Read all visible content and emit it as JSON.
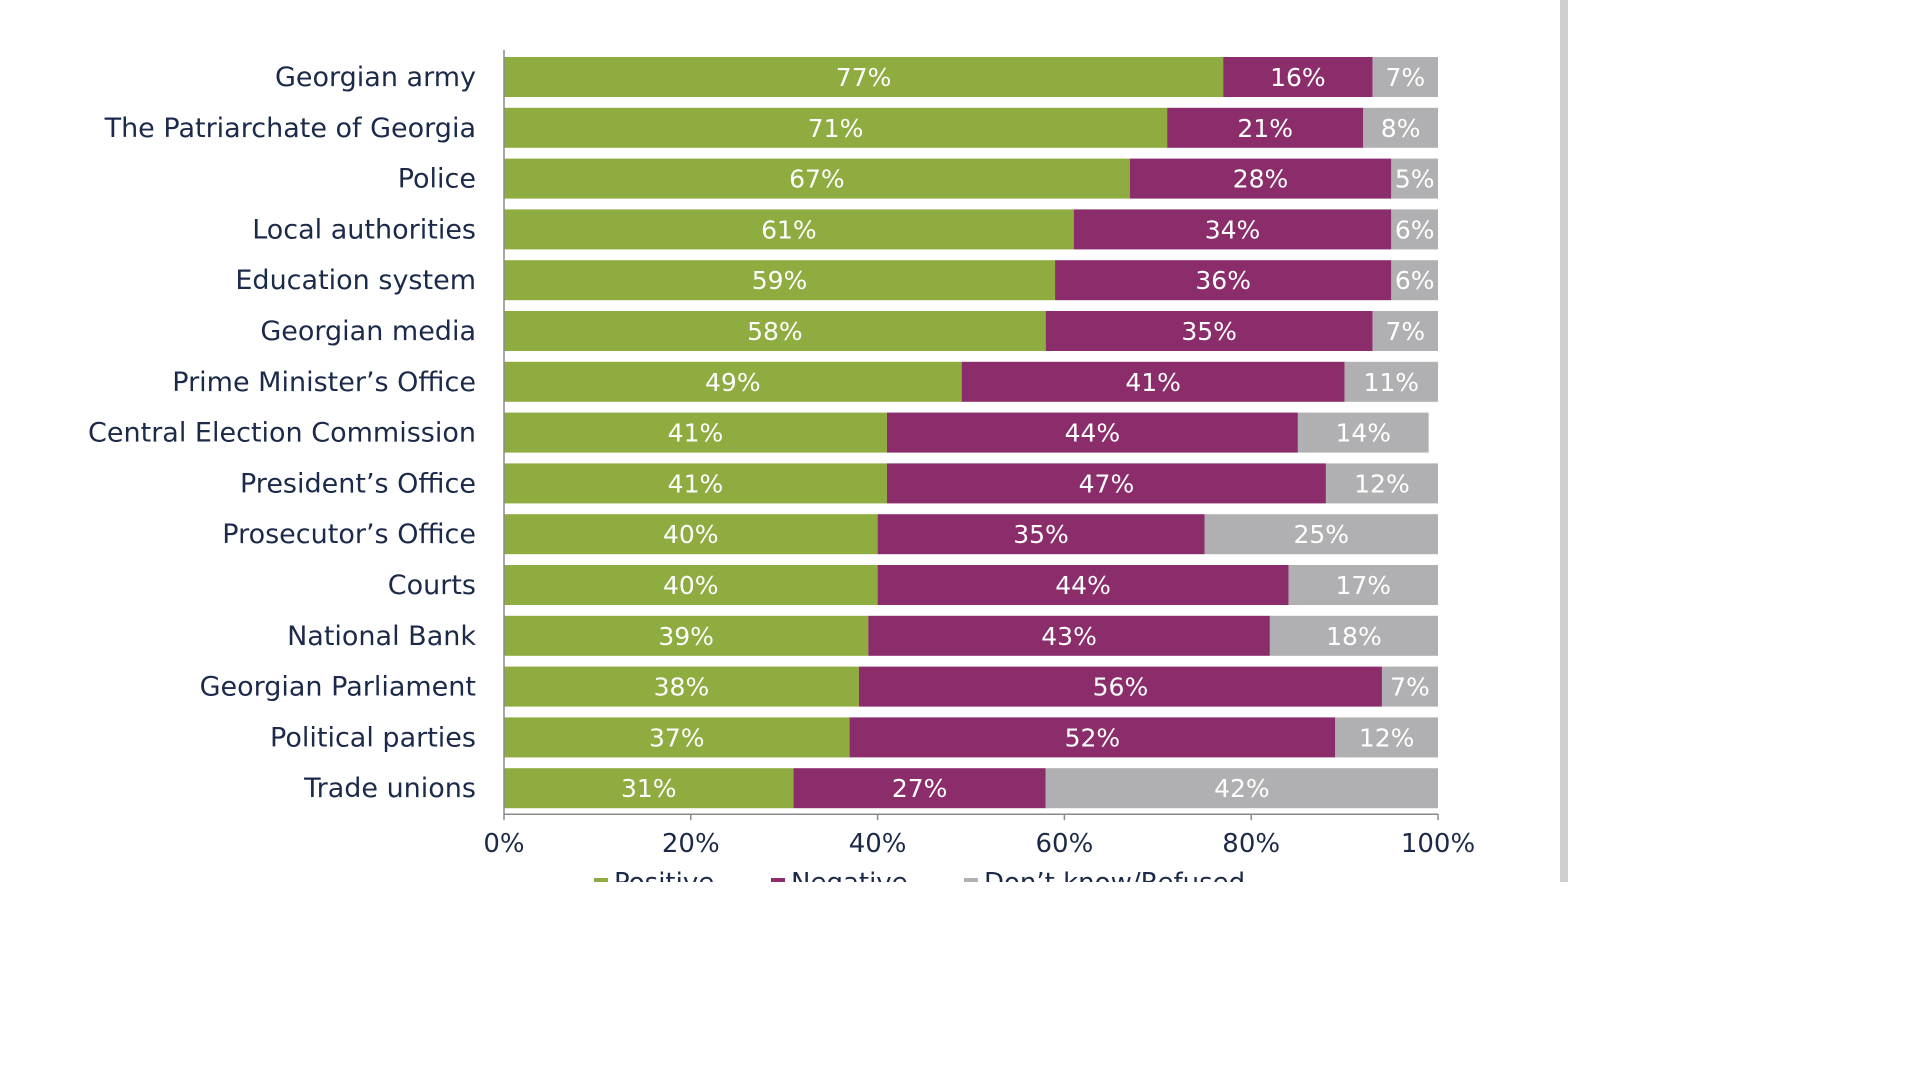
{
  "chart_data": {
    "type": "bar",
    "orientation": "horizontal",
    "stacked": true,
    "categories": [
      "Georgian army",
      "The Patriarchate of Georgia",
      "Police",
      "Local authorities",
      "Education system",
      "Georgian media",
      "Prime Minister’s Office",
      "Central Election Commission",
      "President’s Office",
      "Prosecutor’s Office",
      "Courts",
      "National Bank",
      "Georgian Parliament",
      "Political parties",
      "Trade unions"
    ],
    "series": [
      {
        "name": "Positive",
        "color": "#8eac3f",
        "values": [
          77,
          71,
          67,
          61,
          59,
          58,
          49,
          41,
          41,
          40,
          40,
          39,
          38,
          37,
          31
        ],
        "labels": [
          "77%",
          "71%",
          "67%",
          "61%",
          "59%",
          "58%",
          "49%",
          "41%",
          "41%",
          "40%",
          "40%",
          "39%",
          "38%",
          "37%",
          "31%"
        ]
      },
      {
        "name": "Negative",
        "color": "#8c2d6b",
        "values": [
          16,
          21,
          28,
          34,
          36,
          35,
          41,
          44,
          47,
          35,
          44,
          43,
          56,
          52,
          27
        ],
        "labels": [
          "16%",
          "21%",
          "28%",
          "34%",
          "36%",
          "35%",
          "41%",
          "44%",
          "47%",
          "35%",
          "44%",
          "43%",
          "56%",
          "52%",
          "27%"
        ]
      },
      {
        "name": "Don’t know/Refused",
        "color": "#b0b0b2",
        "values": [
          7,
          8,
          5,
          6,
          6,
          7,
          11,
          14,
          12,
          25,
          17,
          18,
          7,
          12,
          42
        ],
        "labels": [
          "7%",
          "8%",
          "5%",
          "6%",
          "6%",
          "7%",
          "11%",
          "14%",
          "12%",
          "25%",
          "17%",
          "18%",
          "7%",
          "12%",
          "42%"
        ]
      }
    ],
    "xlim": [
      0,
      100
    ],
    "xticks": [
      "0%",
      "20%",
      "40%",
      "60%",
      "80%",
      "100%"
    ],
    "title": "",
    "xlabel": "",
    "ylabel": "",
    "legend": "bottom",
    "grid": false
  }
}
